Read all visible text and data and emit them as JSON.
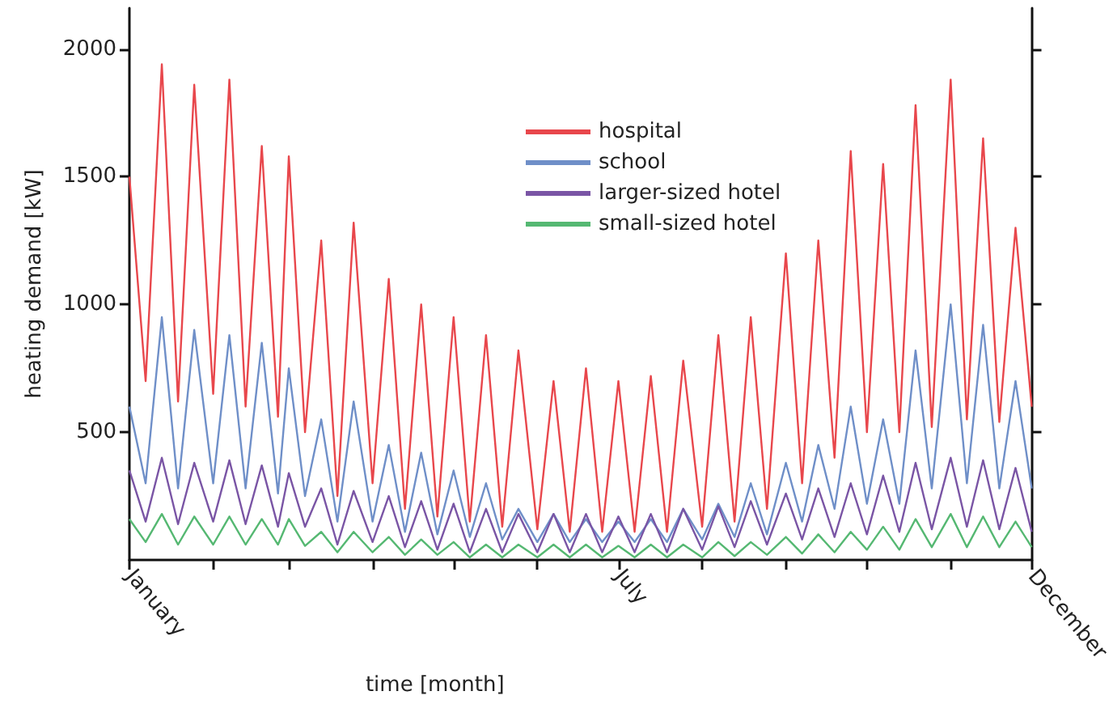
{
  "chart_data": {
    "type": "line",
    "xlabel": "time [month]",
    "ylabel": "heating demand [kW]",
    "x": [
      "--01-01",
      "--01-07",
      "--01-13",
      "--01-19",
      "--01-25",
      "--02-01",
      "--02-07",
      "--02-13",
      "--02-19",
      "--02-25",
      "--03-01",
      "--03-07",
      "--03-13",
      "--03-19",
      "--03-25",
      "--04-01",
      "--04-07",
      "--04-13",
      "--04-19",
      "--04-25",
      "--05-01",
      "--05-07",
      "--05-13",
      "--05-19",
      "--05-25",
      "--06-01",
      "--06-07",
      "--06-13",
      "--06-19",
      "--06-25",
      "--07-01",
      "--07-07",
      "--07-13",
      "--07-19",
      "--07-25",
      "--08-01",
      "--08-07",
      "--08-13",
      "--08-19",
      "--08-25",
      "--09-01",
      "--09-07",
      "--09-13",
      "--09-19",
      "--09-25",
      "--10-01",
      "--10-07",
      "--10-13",
      "--10-19",
      "--10-25",
      "--11-01",
      "--11-07",
      "--11-13",
      "--11-19",
      "--11-25",
      "--12-01"
    ],
    "series": [
      {
        "name": "hospital",
        "color": "#e8474c",
        "values": [
          1500,
          700,
          1940,
          620,
          1860,
          650,
          1880,
          600,
          1620,
          560,
          1580,
          500,
          1250,
          250,
          1320,
          300,
          1100,
          200,
          1000,
          170,
          950,
          150,
          880,
          130,
          820,
          120,
          700,
          110,
          750,
          110,
          700,
          110,
          720,
          110,
          780,
          130,
          880,
          150,
          950,
          200,
          1200,
          300,
          1250,
          400,
          1600,
          500,
          1550,
          500,
          1780,
          520,
          1880,
          550,
          1650,
          540,
          1300,
          600
        ]
      },
      {
        "name": "school",
        "color": "#6f8fc8",
        "values": [
          600,
          300,
          950,
          280,
          900,
          300,
          880,
          280,
          850,
          260,
          750,
          250,
          550,
          150,
          620,
          150,
          450,
          110,
          420,
          100,
          350,
          90,
          300,
          80,
          200,
          70,
          180,
          70,
          160,
          70,
          150,
          70,
          160,
          70,
          200,
          80,
          220,
          90,
          300,
          100,
          380,
          150,
          450,
          200,
          600,
          220,
          550,
          220,
          820,
          280,
          1000,
          300,
          920,
          280,
          700,
          280
        ]
      },
      {
        "name": "larger-sized hotel",
        "color": "#7a55a5",
        "values": [
          350,
          150,
          400,
          140,
          380,
          150,
          390,
          140,
          370,
          130,
          340,
          130,
          280,
          60,
          270,
          70,
          250,
          50,
          230,
          40,
          220,
          30,
          200,
          30,
          180,
          30,
          180,
          30,
          180,
          30,
          170,
          30,
          180,
          30,
          200,
          40,
          210,
          50,
          230,
          60,
          260,
          80,
          280,
          90,
          300,
          100,
          330,
          110,
          380,
          120,
          400,
          130,
          390,
          120,
          360,
          110
        ]
      },
      {
        "name": "small-sized hotel",
        "color": "#55b872",
        "values": [
          160,
          70,
          180,
          60,
          170,
          60,
          170,
          60,
          160,
          60,
          160,
          55,
          110,
          30,
          110,
          30,
          90,
          20,
          80,
          20,
          70,
          10,
          60,
          10,
          60,
          10,
          60,
          10,
          60,
          10,
          55,
          10,
          60,
          10,
          60,
          10,
          70,
          15,
          70,
          20,
          90,
          25,
          100,
          30,
          110,
          40,
          130,
          40,
          160,
          50,
          180,
          50,
          170,
          50,
          150,
          50
        ]
      }
    ],
    "xlim": [
      "--01-01",
      "--12-01"
    ],
    "xticks": [
      {
        "value": "--01-01",
        "label": "January"
      },
      {
        "value": "--02-01",
        "label": null
      },
      {
        "value": "--03-01",
        "label": null
      },
      {
        "value": "--04-01",
        "label": null
      },
      {
        "value": "--05-01",
        "label": null
      },
      {
        "value": "--06-01",
        "label": null
      },
      {
        "value": "--07-01",
        "label": "July"
      },
      {
        "value": "--08-01",
        "label": null
      },
      {
        "value": "--09-01",
        "label": null
      },
      {
        "value": "--10-01",
        "label": null
      },
      {
        "value": "--11-01",
        "label": null
      },
      {
        "value": "--12-01",
        "label": "December"
      }
    ],
    "ylim": [
      0,
      2160
    ],
    "yticks": [
      500,
      1000,
      1500,
      2000
    ],
    "legend": "top",
    "marker": "none",
    "line_style": "solid",
    "grid": false
  }
}
